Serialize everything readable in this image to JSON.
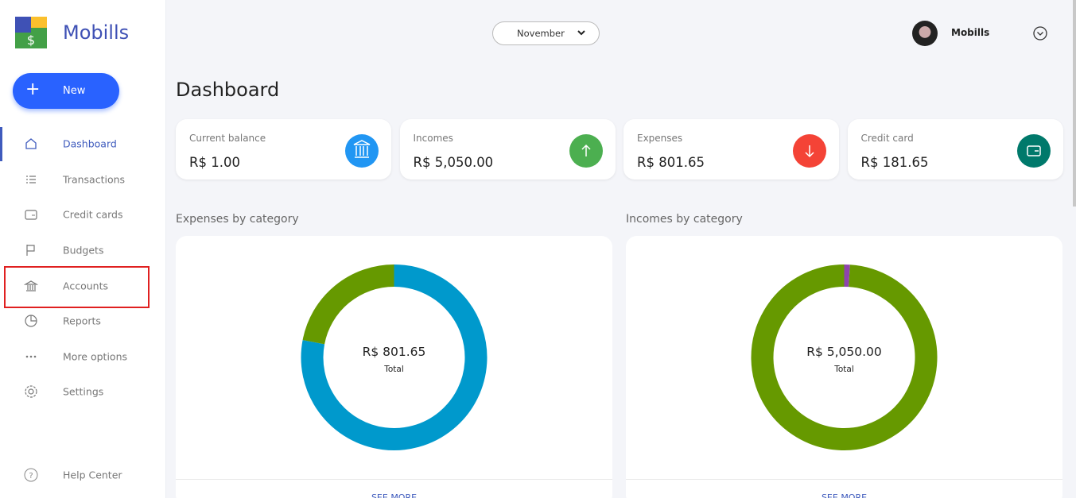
{
  "sidebar": {
    "brand": "Mobills",
    "new_button": "New",
    "nav": [
      "Dashboard",
      "Transactions",
      "Credit cards",
      "Budgets",
      "Accounts",
      "Reports",
      "More options",
      "Settings"
    ],
    "help": "Help Center"
  },
  "header": {
    "month": "November",
    "user": "Mobills"
  },
  "page_title": "Dashboard",
  "cards": [
    {
      "label": "Current balance",
      "value": "R$ 1.00",
      "color": "#2196f3"
    },
    {
      "label": "Incomes",
      "value": "R$ 5,050.00",
      "color": "#4caf50"
    },
    {
      "label": "Expenses",
      "value": "R$ 801.65",
      "color": "#f44336"
    },
    {
      "label": "Credit card",
      "value": "R$ 181.65",
      "color": "#00796b"
    }
  ],
  "donuts": [
    {
      "title": "Expenses by category",
      "total": "R$ 801.65",
      "total_label": "Total",
      "link": "SEE MORE",
      "segments": [
        {
          "color": "#0099cc",
          "value": 78
        },
        {
          "color": "#669900",
          "value": 22
        }
      ]
    },
    {
      "title": "Incomes by category",
      "total": "R$ 5,050.00",
      "total_label": "Total",
      "link": "SEE MORE",
      "segments": [
        {
          "color": "#8e44ad",
          "value": 1
        },
        {
          "color": "#669900",
          "value": 99
        }
      ]
    }
  ]
}
